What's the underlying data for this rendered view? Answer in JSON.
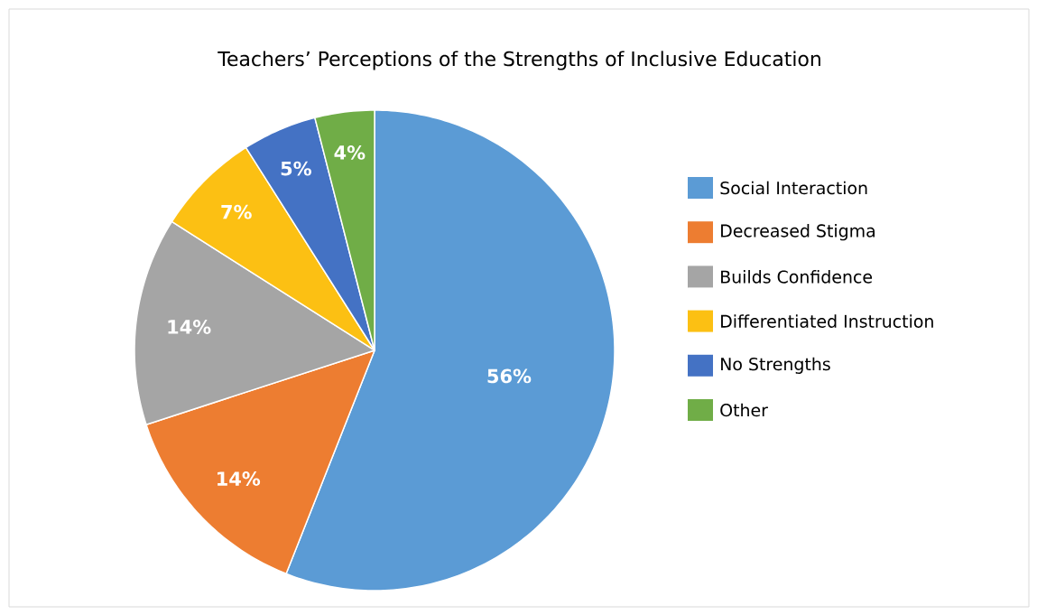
{
  "chart_data": {
    "type": "pie",
    "title": "Teachers’ Perceptions of the Strengths of Inclusive Education",
    "categories": [
      "Social Interaction",
      "Decreased Stigma",
      "Builds Confidence",
      "Differentiated Instruction",
      "No Strengths",
      "Other"
    ],
    "values": [
      56,
      14,
      14,
      7,
      5,
      4
    ],
    "value_labels": [
      "56%",
      "14%",
      "14%",
      "7%",
      "5%",
      "4%"
    ],
    "colors": [
      "#5b9bd5",
      "#ed7d31",
      "#a5a5a5",
      "#fcc013",
      "#4472c4",
      "#70ad47"
    ],
    "legend": "right"
  }
}
